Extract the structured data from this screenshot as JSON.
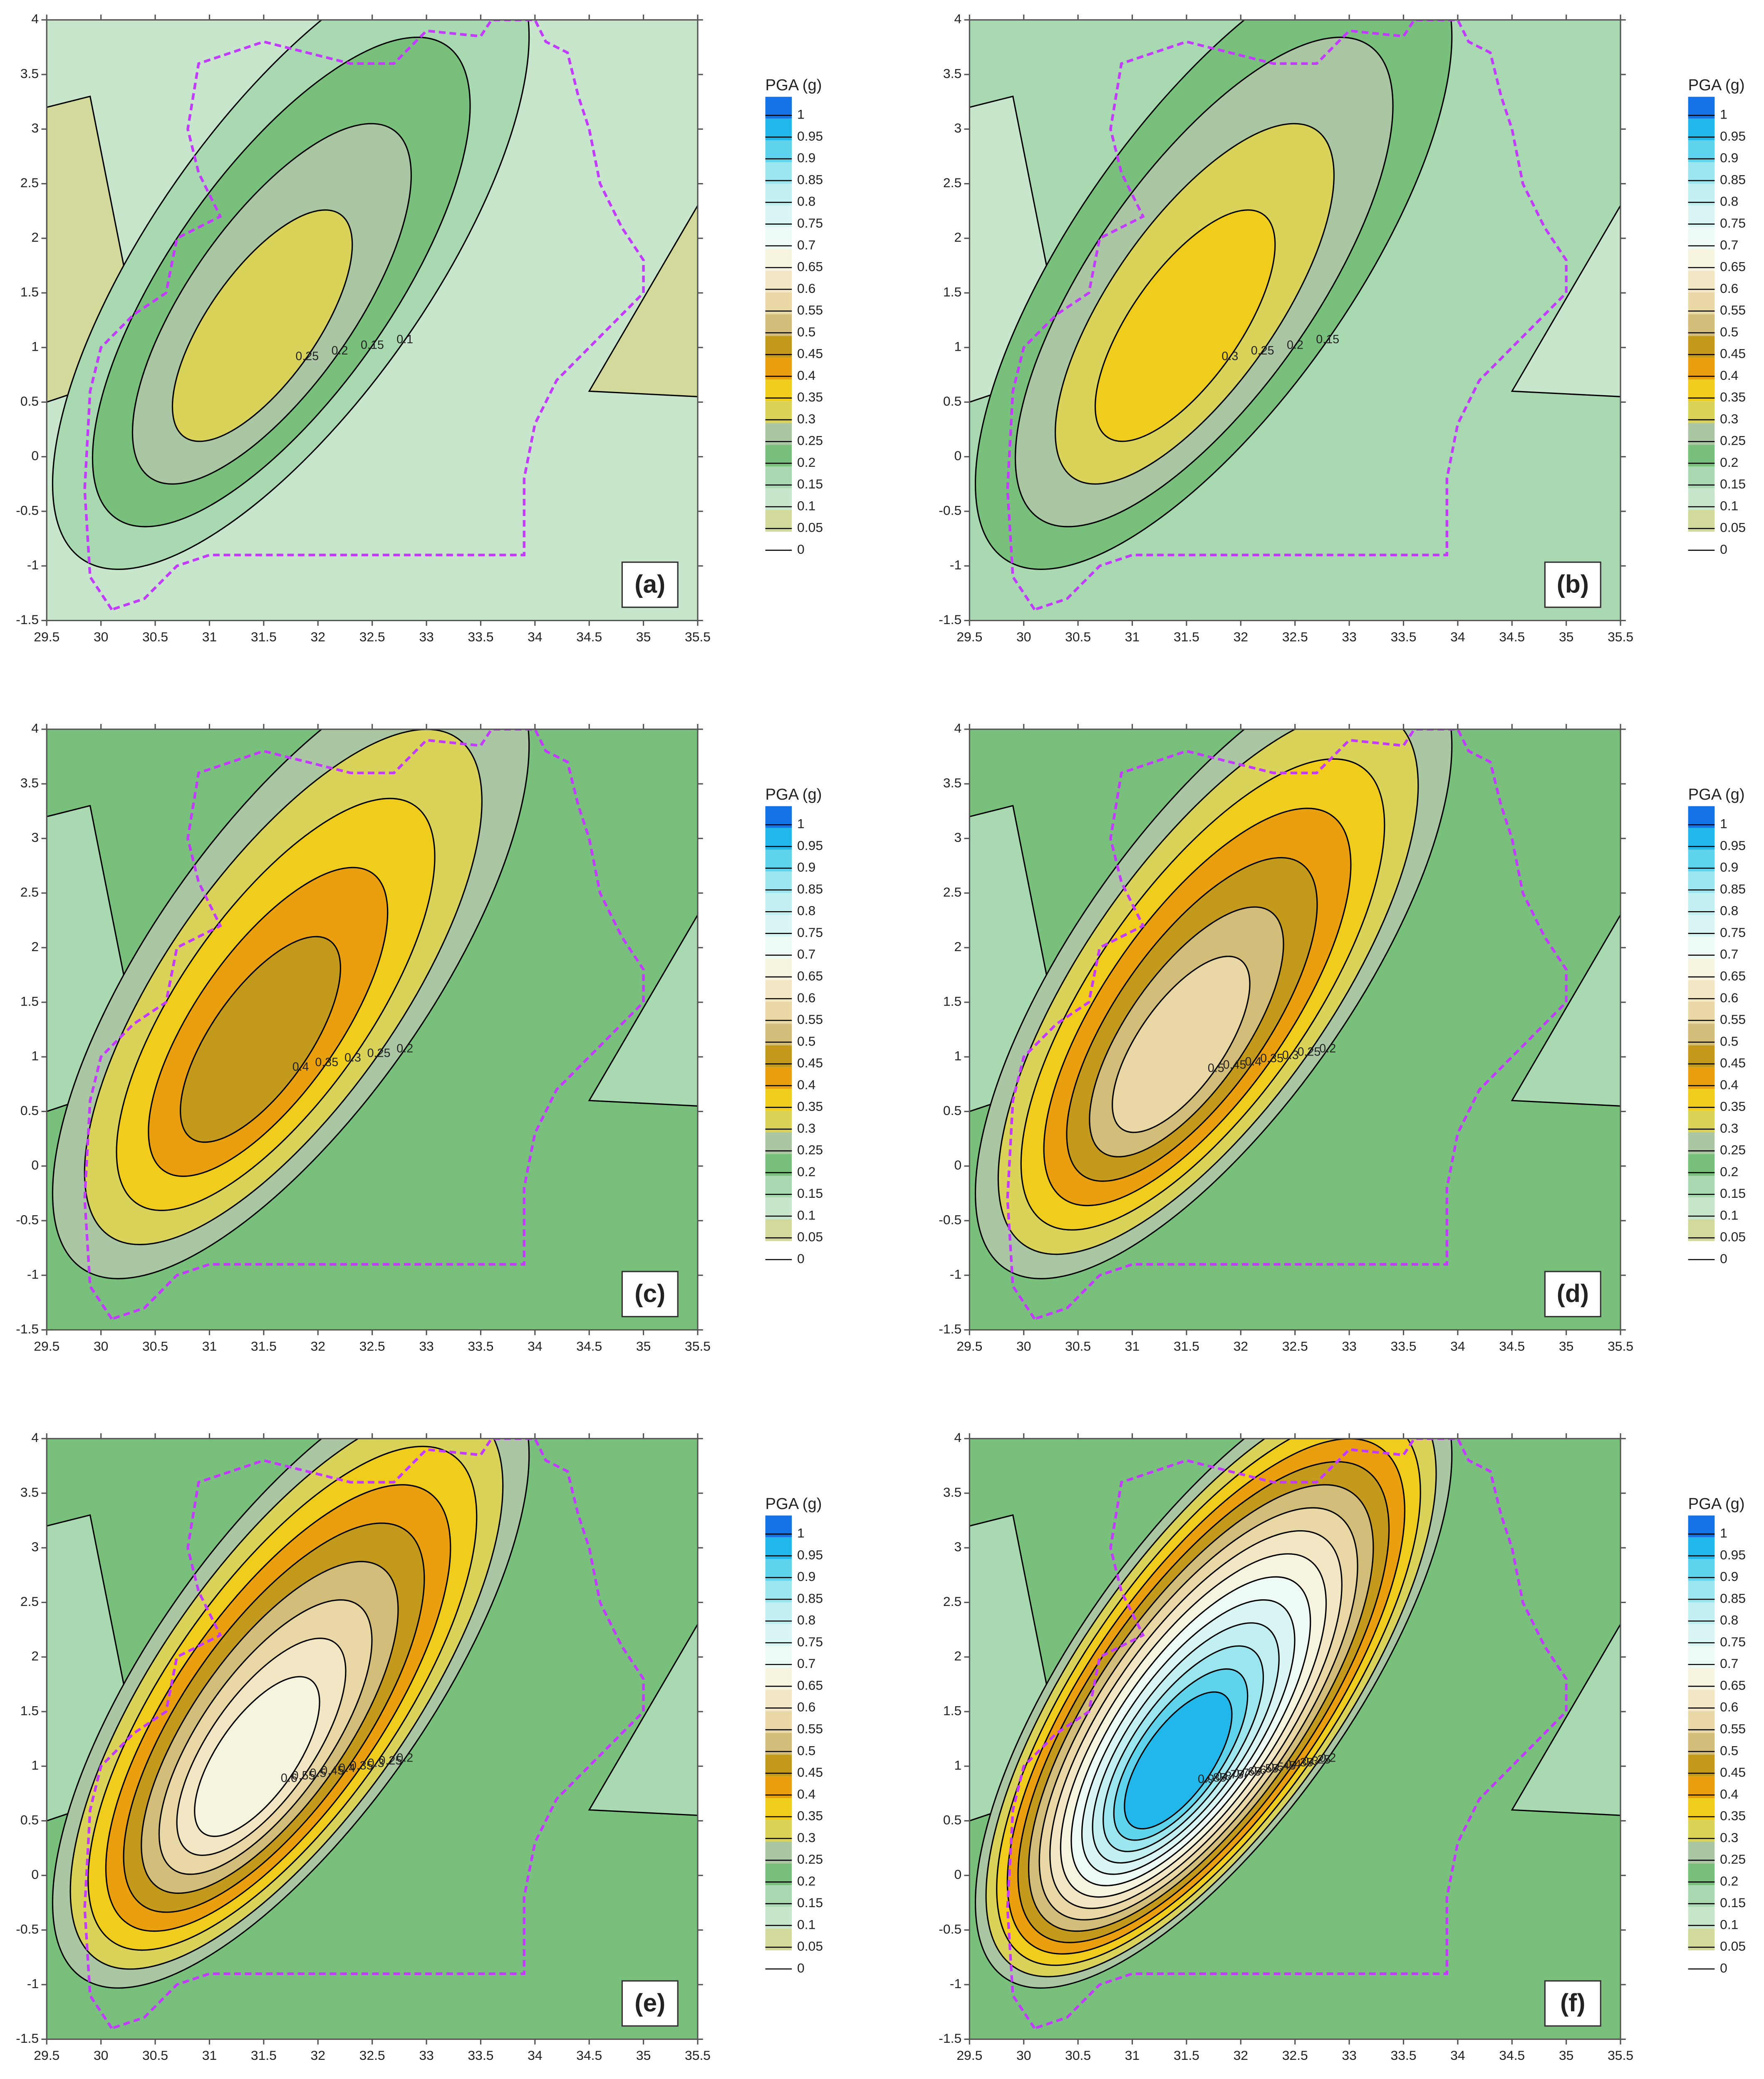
{
  "chart_data": [
    {
      "type": "contour",
      "panel_label": "(a)",
      "colorbar_title": "PGA (g)",
      "xlim": [
        29.5,
        35.5
      ],
      "xticks": [
        29.5,
        30,
        30.5,
        31,
        31.5,
        32,
        32.5,
        33,
        33.5,
        34,
        34.5,
        35,
        35.5
      ],
      "ylim": [
        -1.5,
        4
      ],
      "yticks": [
        -1.5,
        -1,
        -0.5,
        0,
        0.5,
        1,
        1.5,
        2,
        2.5,
        3,
        3.5,
        4
      ],
      "levels": [
        0,
        0.05,
        0.1,
        0.15,
        0.2,
        0.25,
        0.3,
        0.35,
        0.4,
        0.45,
        0.5,
        0.55,
        0.6,
        0.65,
        0.7,
        0.75,
        0.8,
        0.85,
        0.9,
        0.95,
        1
      ],
      "colors": [
        "#d3d99b",
        "#c8e6cc",
        "#a9d9b0",
        "#78c07b",
        "#aac6a3",
        "#d9d35a",
        "#f0cd1c",
        "#eaa00e",
        "#c39a1c",
        "#d2bd7a",
        "#e9d8a6",
        "#f3e6c4",
        "#f6f4df",
        "#eefaf5",
        "#d9f5f4",
        "#c2eff2",
        "#9ae5ee",
        "#5fd2ec",
        "#22b7ea",
        "#1473e6"
      ],
      "background_level": 0.05,
      "peak_level": 0.25
    },
    {
      "type": "contour",
      "panel_label": "(b)",
      "colorbar_title": "PGA (g)",
      "xlim": [
        29.5,
        35.5
      ],
      "xticks": [
        29.5,
        30,
        30.5,
        31,
        31.5,
        32,
        32.5,
        33,
        33.5,
        34,
        34.5,
        35,
        35.5
      ],
      "ylim": [
        -1.5,
        4
      ],
      "yticks": [
        -1.5,
        -1,
        -0.5,
        0,
        0.5,
        1,
        1.5,
        2,
        2.5,
        3,
        3.5,
        4
      ],
      "levels": [
        0,
        0.05,
        0.1,
        0.15,
        0.2,
        0.25,
        0.3,
        0.35,
        0.4,
        0.45,
        0.5,
        0.55,
        0.6,
        0.65,
        0.7,
        0.75,
        0.8,
        0.85,
        0.9,
        0.95,
        1
      ],
      "colors": [
        "#d3d99b",
        "#c8e6cc",
        "#a9d9b0",
        "#78c07b",
        "#aac6a3",
        "#d9d35a",
        "#f0cd1c",
        "#eaa00e",
        "#c39a1c",
        "#d2bd7a",
        "#e9d8a6",
        "#f3e6c4",
        "#f6f4df",
        "#eefaf5",
        "#d9f5f4",
        "#c2eff2",
        "#9ae5ee",
        "#5fd2ec",
        "#22b7ea",
        "#1473e6"
      ],
      "background_level": 0.1,
      "peak_level": 0.3
    },
    {
      "type": "contour",
      "panel_label": "(c)",
      "colorbar_title": "PGA (g)",
      "xlim": [
        29.5,
        35.5
      ],
      "xticks": [
        29.5,
        30,
        30.5,
        31,
        31.5,
        32,
        32.5,
        33,
        33.5,
        34,
        34.5,
        35,
        35.5
      ],
      "ylim": [
        -1.5,
        4
      ],
      "yticks": [
        -1.5,
        -1,
        -0.5,
        0,
        0.5,
        1,
        1.5,
        2,
        2.5,
        3,
        3.5,
        4
      ],
      "levels": [
        0,
        0.05,
        0.1,
        0.15,
        0.2,
        0.25,
        0.3,
        0.35,
        0.4,
        0.45,
        0.5,
        0.55,
        0.6,
        0.65,
        0.7,
        0.75,
        0.8,
        0.85,
        0.9,
        0.95,
        1
      ],
      "colors": [
        "#d3d99b",
        "#c8e6cc",
        "#a9d9b0",
        "#78c07b",
        "#aac6a3",
        "#d9d35a",
        "#f0cd1c",
        "#eaa00e",
        "#c39a1c",
        "#d2bd7a",
        "#e9d8a6",
        "#f3e6c4",
        "#f6f4df",
        "#eefaf5",
        "#d9f5f4",
        "#c2eff2",
        "#9ae5ee",
        "#5fd2ec",
        "#22b7ea",
        "#1473e6"
      ],
      "background_level": 0.15,
      "peak_level": 0.4
    },
    {
      "type": "contour",
      "panel_label": "(d)",
      "colorbar_title": "PGA (g)",
      "xlim": [
        29.5,
        35.5
      ],
      "xticks": [
        29.5,
        30,
        30.5,
        31,
        31.5,
        32,
        32.5,
        33,
        33.5,
        34,
        34.5,
        35,
        35.5
      ],
      "ylim": [
        -1.5,
        4
      ],
      "yticks": [
        -1.5,
        -1,
        -0.5,
        0,
        0.5,
        1,
        1.5,
        2,
        2.5,
        3,
        3.5,
        4
      ],
      "levels": [
        0,
        0.05,
        0.1,
        0.15,
        0.2,
        0.25,
        0.3,
        0.35,
        0.4,
        0.45,
        0.5,
        0.55,
        0.6,
        0.65,
        0.7,
        0.75,
        0.8,
        0.85,
        0.9,
        0.95,
        1
      ],
      "colors": [
        "#d3d99b",
        "#c8e6cc",
        "#a9d9b0",
        "#78c07b",
        "#aac6a3",
        "#d9d35a",
        "#f0cd1c",
        "#eaa00e",
        "#c39a1c",
        "#d2bd7a",
        "#e9d8a6",
        "#f3e6c4",
        "#f6f4df",
        "#eefaf5",
        "#d9f5f4",
        "#c2eff2",
        "#9ae5ee",
        "#5fd2ec",
        "#22b7ea",
        "#1473e6"
      ],
      "background_level": 0.15,
      "peak_level": 0.5
    },
    {
      "type": "contour",
      "panel_label": "(e)",
      "colorbar_title": "PGA (g)",
      "xlim": [
        29.5,
        35.5
      ],
      "xticks": [
        29.5,
        30,
        30.5,
        31,
        31.5,
        32,
        32.5,
        33,
        33.5,
        34,
        34.5,
        35,
        35.5
      ],
      "ylim": [
        -1.5,
        4
      ],
      "yticks": [
        -1.5,
        -1,
        -0.5,
        0,
        0.5,
        1,
        1.5,
        2,
        2.5,
        3,
        3.5,
        4
      ],
      "levels": [
        0,
        0.05,
        0.1,
        0.15,
        0.2,
        0.25,
        0.3,
        0.35,
        0.4,
        0.45,
        0.5,
        0.55,
        0.6,
        0.65,
        0.7,
        0.75,
        0.8,
        0.85,
        0.9,
        0.95,
        1
      ],
      "colors": [
        "#d3d99b",
        "#c8e6cc",
        "#a9d9b0",
        "#78c07b",
        "#aac6a3",
        "#d9d35a",
        "#f0cd1c",
        "#eaa00e",
        "#c39a1c",
        "#d2bd7a",
        "#e9d8a6",
        "#f3e6c4",
        "#f6f4df",
        "#eefaf5",
        "#d9f5f4",
        "#c2eff2",
        "#9ae5ee",
        "#5fd2ec",
        "#22b7ea",
        "#1473e6"
      ],
      "background_level": 0.15,
      "peak_level": 0.6
    },
    {
      "type": "contour",
      "panel_label": "(f)",
      "colorbar_title": "PGA (g)",
      "xlim": [
        29.5,
        35.5
      ],
      "xticks": [
        29.5,
        30,
        30.5,
        31,
        31.5,
        32,
        32.5,
        33,
        33.5,
        34,
        34.5,
        35,
        35.5
      ],
      "ylim": [
        -1.5,
        4
      ],
      "yticks": [
        -1.5,
        -1,
        -0.5,
        0,
        0.5,
        1,
        1.5,
        2,
        2.5,
        3,
        3.5,
        4
      ],
      "levels": [
        0,
        0.05,
        0.1,
        0.15,
        0.2,
        0.25,
        0.3,
        0.35,
        0.4,
        0.45,
        0.5,
        0.55,
        0.6,
        0.65,
        0.7,
        0.75,
        0.8,
        0.85,
        0.9,
        0.95,
        1
      ],
      "colors": [
        "#d3d99b",
        "#c8e6cc",
        "#a9d9b0",
        "#78c07b",
        "#aac6a3",
        "#d9d35a",
        "#f0cd1c",
        "#eaa00e",
        "#c39a1c",
        "#d2bd7a",
        "#e9d8a6",
        "#f3e6c4",
        "#f6f4df",
        "#eefaf5",
        "#d9f5f4",
        "#c2eff2",
        "#9ae5ee",
        "#5fd2ec",
        "#22b7ea",
        "#1473e6"
      ],
      "background_level": 0.15,
      "peak_level": 0.9
    }
  ]
}
